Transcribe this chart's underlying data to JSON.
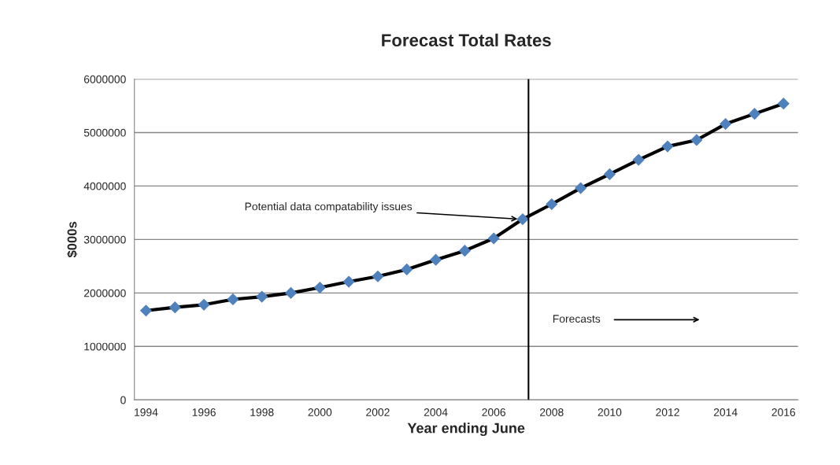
{
  "chart_data": {
    "type": "line",
    "title": "Forecast Total Rates",
    "xlabel": "Year ending June",
    "ylabel": "$000s",
    "x": [
      1994,
      1995,
      1996,
      1997,
      1998,
      1999,
      2000,
      2001,
      2002,
      2003,
      2004,
      2005,
      2006,
      2007,
      2008,
      2009,
      2010,
      2011,
      2012,
      2013,
      2014,
      2015,
      2016
    ],
    "series": [
      {
        "color": "#000000",
        "values": [
          1670000,
          1730000,
          1780000,
          1880000,
          1930000,
          2000000,
          2100000,
          2210000,
          2310000,
          2440000,
          2620000,
          2790000,
          3020000,
          3380000,
          3660000,
          3960000,
          4220000,
          4490000,
          4740000,
          4860000,
          5160000,
          5350000,
          5540000
        ]
      }
    ],
    "xlim": [
      1993.6,
      2016.5
    ],
    "xticks": [
      1994,
      1996,
      1998,
      2000,
      2002,
      2004,
      2006,
      2008,
      2010,
      2012,
      2014,
      2016
    ],
    "ylim": [
      0,
      6000000
    ],
    "yticks": [
      0,
      1000000,
      2000000,
      3000000,
      4000000,
      5000000,
      6000000
    ],
    "grid": "y",
    "marker": "diamond",
    "legend": false,
    "ref_lines": [
      {
        "axis": "x",
        "value": 2007.2,
        "color": "#000000"
      }
    ],
    "annotations": [
      {
        "text": "Potential data compatability issues",
        "x": 2006.9,
        "y": 3380000
      },
      "Forecasts"
    ]
  }
}
